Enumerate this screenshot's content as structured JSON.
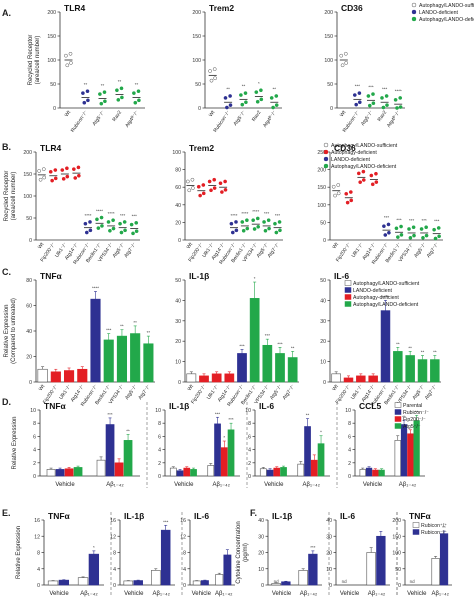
{
  "colors": {
    "white": "#ffffff",
    "blue": "#2e3192",
    "red": "#e31e24",
    "green": "#22a84a",
    "axis": "#333333",
    "open": "#555555"
  },
  "chart_data": [
    {
      "panel": "A.",
      "type": "scatter",
      "title": "TLR4",
      "ylabel": "Recycled Receptor (area/cell number)",
      "ylim": [
        0,
        200
      ],
      "yticks": [
        0,
        50,
        100,
        150,
        200
      ],
      "categories": [
        "Wt",
        "Rubicon⁻/⁻",
        "Atg5⁻/⁻",
        "Rav2",
        "Atg4ᴮ⁻/⁻"
      ],
      "colors": [
        "white",
        "blue",
        "green",
        "green",
        "green"
      ],
      "means": [
        100,
        22,
        20,
        28,
        22
      ],
      "sig": [
        "",
        "**",
        "**",
        "**",
        "**"
      ]
    },
    {
      "panel": "",
      "type": "scatter",
      "title": "Trem2",
      "ylabel": "",
      "ylim": [
        0,
        200
      ],
      "yticks": [
        0,
        50,
        100,
        150,
        200
      ],
      "categories": [
        "Wt",
        "Rubicon⁻/⁻",
        "Atg5⁻/⁻",
        "Rav2",
        "Atg4ᴮ⁻/⁻"
      ],
      "colors": [
        "white",
        "blue",
        "green",
        "green",
        "green"
      ],
      "means": [
        68,
        12,
        18,
        24,
        12
      ],
      "sig": [
        "",
        "**",
        "**",
        "*",
        "**"
      ]
    },
    {
      "panel": "",
      "type": "scatter",
      "title": "CD36",
      "ylabel": "",
      "ylim": [
        0,
        200
      ],
      "yticks": [
        0,
        50,
        100,
        150,
        200
      ],
      "categories": [
        "Wt",
        "Rubicon⁻/⁻",
        "Atg5⁻/⁻",
        "Rav2",
        "Atg4ᴮ⁻/⁻"
      ],
      "colors": [
        "white",
        "blue",
        "green",
        "green",
        "green"
      ],
      "means": [
        100,
        18,
        16,
        12,
        8
      ],
      "sig": [
        "",
        "***",
        "***",
        "***",
        "****"
      ],
      "legend": [
        {
          "label": "Autophagy/LANDO-sufficient",
          "color": "white"
        },
        {
          "label": "LANDO-deficient",
          "color": "blue"
        },
        {
          "label": "Autophagy/LANDO-deficient",
          "color": "green"
        }
      ]
    },
    {
      "panel": "B.",
      "type": "scatter",
      "title": "TLR4",
      "ylabel": "Recycled Receptor (area/cell number)",
      "ylim": [
        0,
        200
      ],
      "yticks": [
        0,
        50,
        100,
        150,
        200
      ],
      "categories": [
        "Wt",
        "Fip200⁻/⁻",
        "Ulk1⁻/⁻",
        "Atg14⁻/⁻",
        "Rubicon⁻/⁻",
        "Beclin1⁻/⁻",
        "VPS34⁻/⁻",
        "Atg5⁻/⁻",
        "Atg7⁻/⁻"
      ],
      "colors": [
        "white",
        "red",
        "red",
        "red",
        "blue",
        "green",
        "green",
        "green",
        "green"
      ],
      "means": [
        148,
        146,
        150,
        152,
        28,
        38,
        32,
        28,
        26
      ],
      "sig": [
        "",
        "",
        "",
        "",
        "****",
        "****",
        "****",
        "***",
        "***"
      ]
    },
    {
      "panel": "",
      "type": "scatter",
      "title": "Trem2",
      "ylabel": "",
      "ylim": [
        0,
        100
      ],
      "yticks": [
        0,
        20,
        40,
        60,
        80,
        100
      ],
      "categories": [
        "Wt",
        "Fip200⁻/⁻",
        "Ulk1⁻/⁻",
        "Atg14⁻/⁻",
        "Rubicon⁻/⁻",
        "Beclin1⁻/⁻",
        "VPS34⁻/⁻",
        "Atg5⁻/⁻",
        "Atg7⁻/⁻"
      ],
      "colors": [
        "white",
        "red",
        "red",
        "red",
        "blue",
        "green",
        "green",
        "green",
        "green"
      ],
      "means": [
        62,
        56,
        62,
        60,
        14,
        16,
        18,
        16,
        14
      ],
      "sig": [
        "",
        "",
        "",
        "",
        "****",
        "****",
        "****",
        "***",
        "***"
      ]
    },
    {
      "panel": "",
      "type": "scatter",
      "title": "CD36",
      "ylabel": "",
      "ylim": [
        0,
        250
      ],
      "yticks": [
        0,
        50,
        100,
        150,
        200,
        250
      ],
      "categories": [
        "Wt",
        "Fip200⁻/⁻",
        "Ulk1⁻/⁻",
        "Atg14⁻/⁻",
        "Rubicon⁻/⁻",
        "Beclin1⁻/⁻",
        "VPS34⁻/⁻",
        "Atg5⁻/⁻",
        "Atg7⁻/⁻"
      ],
      "colors": [
        "white",
        "red",
        "red",
        "red",
        "blue",
        "green",
        "green",
        "green",
        "green"
      ],
      "means": [
        140,
        120,
        178,
        172,
        28,
        22,
        20,
        20,
        18
      ],
      "sig": [
        "",
        "",
        "",
        "",
        "***",
        "***",
        "***",
        "***",
        "***"
      ],
      "legend": [
        {
          "label": "Autophagy/LANDO-sufficient",
          "color": "white"
        },
        {
          "label": "Autophagy-deficient",
          "color": "red"
        },
        {
          "label": "LANDO-deficient",
          "color": "blue"
        },
        {
          "label": "Autophagy/LANDO-deficient",
          "color": "green"
        }
      ]
    },
    {
      "panel": "C.",
      "type": "bar",
      "title": "TNFα",
      "ylabel": "Relative Expression (Compared to untreated)",
      "ylim": [
        0,
        80
      ],
      "yticks": [
        0,
        20,
        40,
        60,
        80
      ],
      "categories": [
        "Wt",
        "Fip200⁻/⁻",
        "Ulk1⁻/⁻",
        "Atg14⁻/⁻",
        "Rubicon⁻/⁻",
        "Beclin1⁻/⁻",
        "VPS34⁻/⁻",
        "Atg5⁻/⁻",
        "Atg7⁻/⁻"
      ],
      "colors": [
        "white",
        "red",
        "red",
        "red",
        "blue",
        "green",
        "green",
        "green",
        "green"
      ],
      "values": [
        10,
        8,
        9,
        10,
        65,
        33,
        36,
        38,
        30
      ],
      "errors": [
        2,
        2,
        2,
        2,
        6,
        5,
        5,
        6,
        6
      ],
      "sig": [
        "",
        "",
        "",
        "",
        "****",
        "***",
        "**",
        "**",
        "**"
      ]
    },
    {
      "panel": "",
      "type": "bar",
      "title": "IL-1β",
      "ylabel": "",
      "ylim": [
        0,
        50
      ],
      "yticks": [
        0,
        10,
        20,
        30,
        40,
        50
      ],
      "categories": [
        "Wt",
        "Fip200⁻/⁻",
        "Ulk1⁻/⁻",
        "Atg14⁻/⁻",
        "Rubicon⁻/⁻",
        "Beclin1⁻/⁻",
        "VPS34⁻/⁻",
        "Atg5⁻/⁻",
        "Atg7⁻/⁻"
      ],
      "colors": [
        "white",
        "red",
        "red",
        "red",
        "blue",
        "green",
        "green",
        "green",
        "green"
      ],
      "values": [
        4,
        3,
        4,
        4,
        14,
        41,
        18,
        14,
        12
      ],
      "errors": [
        1,
        1,
        1,
        1,
        2,
        8,
        3,
        3,
        3
      ],
      "sig": [
        "",
        "",
        "",
        "",
        "***",
        "*",
        "***",
        "***",
        "**"
      ]
    },
    {
      "panel": "",
      "type": "bar",
      "title": "IL-6",
      "ylabel": "",
      "ylim": [
        0,
        50
      ],
      "yticks": [
        0,
        10,
        20,
        30,
        40,
        50
      ],
      "categories": [
        "Wt",
        "Fip200⁻/⁻",
        "Ulk1⁻/⁻",
        "Atg14⁻/⁻",
        "Rubicon⁻/⁻",
        "Beclin1⁻/⁻",
        "VPS34⁻/⁻",
        "Atg5⁻/⁻",
        "Atg7⁻/⁻"
      ],
      "colors": [
        "white",
        "red",
        "red",
        "red",
        "blue",
        "green",
        "green",
        "green",
        "green"
      ],
      "values": [
        4,
        2,
        3,
        3,
        35,
        15,
        13,
        11,
        11
      ],
      "errors": [
        1,
        1,
        1,
        1,
        5,
        2,
        2,
        2,
        2
      ],
      "sig": [
        "",
        "",
        "",
        "",
        "****",
        "**",
        "**",
        "**",
        "**"
      ],
      "legend": [
        {
          "label": "Autophagy/LANDO-sufficient",
          "color": "white"
        },
        {
          "label": "LANDO-deficient",
          "color": "blue"
        },
        {
          "label": "Autophagy-deficient",
          "color": "red"
        },
        {
          "label": "Autophagy/LANDO-deficient",
          "color": "green"
        }
      ]
    },
    {
      "panel": "D.",
      "type": "bar",
      "title": "TNFα",
      "ylabel": "Relative Expression",
      "ylim": [
        0,
        10
      ],
      "yticks": [
        0,
        2,
        4,
        6,
        8,
        10
      ],
      "groups": [
        "Vehicle",
        "Aβ₁₋₄₂"
      ],
      "group_colors": [
        "white",
        "blue",
        "red",
        "green"
      ],
      "values": [
        [
          1.0,
          1.0,
          1.1,
          1.3
        ],
        [
          2.4,
          7.8,
          2.0,
          5.4
        ]
      ],
      "errors": [
        [
          0.2,
          0.2,
          0.2,
          0.2
        ],
        [
          0.5,
          1.0,
          0.6,
          0.9
        ]
      ],
      "sig": [
        [
          "",
          "",
          "",
          ""
        ],
        [
          "",
          "***",
          "",
          "**"
        ]
      ]
    },
    {
      "panel": "",
      "type": "bar",
      "title": "IL-1β",
      "ylabel": "",
      "ylim": [
        0,
        10
      ],
      "yticks": [
        0,
        2,
        4,
        6,
        8,
        10
      ],
      "groups": [
        "Vehicle",
        "Aβ₁₋₄₂"
      ],
      "group_colors": [
        "white",
        "blue",
        "red",
        "green"
      ],
      "values": [
        [
          1.2,
          0.8,
          1.2,
          1.0
        ],
        [
          1.6,
          7.9,
          4.3,
          7.0
        ]
      ],
      "errors": [
        [
          0.2,
          0.2,
          0.2,
          0.2
        ],
        [
          0.3,
          1.0,
          1.0,
          1.0
        ]
      ],
      "sig": [
        [
          "",
          "",
          "",
          ""
        ],
        [
          "",
          "***",
          "*",
          "***"
        ]
      ]
    },
    {
      "panel": "",
      "type": "bar",
      "title": "IL-6",
      "ylabel": "",
      "ylim": [
        0,
        10
      ],
      "yticks": [
        0,
        2,
        4,
        6,
        8,
        10
      ],
      "groups": [
        "Vehicle",
        "Aβ₁₋₄₂"
      ],
      "group_colors": [
        "white",
        "blue",
        "red",
        "green"
      ],
      "values": [
        [
          1.1,
          0.9,
          1.2,
          1.3
        ],
        [
          1.8,
          7.5,
          2.4,
          4.9
        ]
      ],
      "errors": [
        [
          0.2,
          0.2,
          0.2,
          0.2
        ],
        [
          0.4,
          1.2,
          0.8,
          1.2
        ]
      ],
      "sig": [
        [
          "",
          "",
          "",
          ""
        ],
        [
          "",
          "**",
          "",
          "*"
        ]
      ]
    },
    {
      "panel": "",
      "type": "bar",
      "title": "CCL5",
      "ylabel": "",
      "ylim": [
        0,
        10
      ],
      "yticks": [
        0,
        2,
        4,
        6,
        8,
        10
      ],
      "groups": [
        "Vehicle",
        "Aβ₁₋₄₂"
      ],
      "group_colors": [
        "white",
        "blue",
        "red",
        "green"
      ],
      "values": [
        [
          1.0,
          1.2,
          0.9,
          0.9
        ],
        [
          5.4,
          7.8,
          6.4,
          8.4
        ]
      ],
      "errors": [
        [
          0.2,
          0.2,
          0.2,
          0.2
        ],
        [
          0.7,
          0.6,
          0.6,
          0.8
        ]
      ],
      "sig": [
        [
          "",
          "",
          "",
          ""
        ],
        [
          "",
          "**",
          "",
          "**"
        ]
      ],
      "legend": [
        {
          "label": "Parental",
          "color": "white"
        },
        {
          "label": "Rubicon⁻/⁻",
          "color": "blue"
        },
        {
          "label": "Fip200⁻/⁻",
          "color": "red"
        },
        {
          "label": "Atg5⁻/⁻",
          "color": "green"
        }
      ]
    },
    {
      "panel": "E.",
      "type": "bar",
      "title": "TNFα",
      "ylabel": "Relative Expression",
      "ylim": [
        0,
        16
      ],
      "yticks": [
        0,
        4,
        8,
        12,
        16
      ],
      "groups": [
        "Vehicle",
        "Aβ₁₋₄₂"
      ],
      "group_colors": [
        "white",
        "blue"
      ],
      "values": [
        [
          1.0,
          1.2
        ],
        [
          1.8,
          7.6
        ]
      ],
      "errors": [
        [
          0.1,
          0.1
        ],
        [
          0.2,
          0.8
        ]
      ],
      "sig": [
        [
          "",
          ""
        ],
        [
          "",
          "*"
        ]
      ]
    },
    {
      "panel": "",
      "type": "bar",
      "title": "IL-1β",
      "ylabel": "",
      "ylim": [
        0,
        16
      ],
      "yticks": [
        0,
        4,
        8,
        12,
        16
      ],
      "groups": [
        "Vehicle",
        "Aβ₁₋₄₂"
      ],
      "group_colors": [
        "white",
        "blue"
      ],
      "values": [
        [
          1.0,
          1.1
        ],
        [
          3.6,
          13.5
        ]
      ],
      "errors": [
        [
          0.1,
          0.1
        ],
        [
          0.4,
          1.2
        ]
      ],
      "sig": [
        [
          "",
          ""
        ],
        [
          "",
          "***"
        ]
      ]
    },
    {
      "panel": "",
      "type": "bar",
      "title": "IL-6",
      "ylabel": "",
      "ylim": [
        0,
        16
      ],
      "yticks": [
        0,
        4,
        8,
        12,
        16
      ],
      "groups": [
        "Vehicle",
        "Aβ₁₋₄₂"
      ],
      "group_colors": [
        "white",
        "blue"
      ],
      "values": [
        [
          1.0,
          1.1
        ],
        [
          2.6,
          7.4
        ]
      ],
      "errors": [
        [
          0.1,
          0.1
        ],
        [
          0.3,
          1.3
        ]
      ],
      "sig": [
        [
          "",
          ""
        ],
        [
          "",
          ""
        ]
      ]
    },
    {
      "panel": "F.",
      "type": "bar",
      "title": "IL-1β",
      "ylabel": "Cytokine Concentration (pg/ml)",
      "ylim": [
        0,
        40
      ],
      "yticks": [
        0,
        10,
        20,
        30,
        40
      ],
      "groups": [
        "Vehicle",
        "Aβ₁₋₄₂"
      ],
      "group_colors": [
        "white",
        "blue"
      ],
      "values": [
        [
          1,
          2
        ],
        [
          9,
          19
        ]
      ],
      "errors": [
        [
          0.3,
          0.3
        ],
        [
          1,
          2
        ]
      ],
      "sig": [
        [
          "nd",
          ""
        ],
        [
          "",
          "***"
        ]
      ]
    },
    {
      "panel": "",
      "type": "bar",
      "title": "IL-6",
      "ylabel": "",
      "ylim": [
        0,
        40
      ],
      "yticks": [
        0,
        10,
        20,
        30,
        40
      ],
      "groups": [
        "Vehicle",
        "Aβ₁₋₄₂"
      ],
      "group_colors": [
        "white",
        "blue"
      ],
      "values": [
        [
          0,
          0
        ],
        [
          20,
          30
        ]
      ],
      "errors": [
        [
          0,
          0
        ],
        [
          3,
          3
        ]
      ],
      "sig": [
        [
          "nd",
          ""
        ],
        [
          "",
          ""
        ]
      ]
    },
    {
      "panel": "",
      "type": "bar",
      "title": "TNFα",
      "ylabel": "",
      "ylim": [
        0,
        200
      ],
      "yticks": [
        0,
        50,
        100,
        150,
        200
      ],
      "groups": [
        "Vehicle",
        "Aβ₁₋₄₂"
      ],
      "group_colors": [
        "white",
        "blue"
      ],
      "values": [
        [
          0,
          0
        ],
        [
          82,
          158
        ]
      ],
      "errors": [
        [
          0,
          0
        ],
        [
          6,
          8
        ]
      ],
      "sig": [
        [
          "nd",
          ""
        ],
        [
          "",
          "**"
        ]
      ],
      "legend": [
        {
          "label": "Rubicon⁺/⁺",
          "color": "white"
        },
        {
          "label": "Rubicon⁻/⁻",
          "color": "blue"
        }
      ]
    }
  ]
}
